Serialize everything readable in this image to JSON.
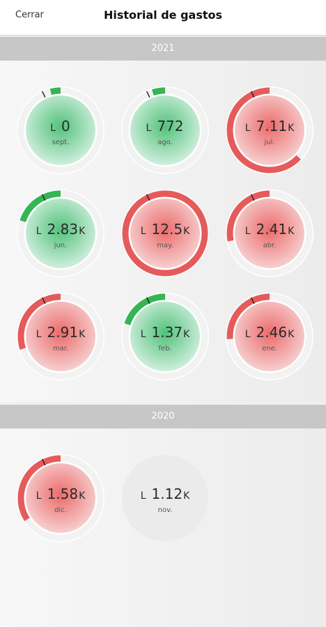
{
  "header": {
    "close_label": "Cerrar",
    "title": "Historial de gastos"
  },
  "colors": {
    "over_budget": "#e55b5b",
    "under_budget": "#35b554",
    "bar": "#c7c7c7"
  },
  "sections": [
    {
      "year": "2021",
      "months": [
        {
          "currency": "L",
          "amount": "0",
          "suffix": "",
          "month": "sept.",
          "status": "under",
          "progress": 0.04,
          "budget_marker": 0.93
        },
        {
          "currency": "L",
          "amount": "772",
          "suffix": "",
          "month": "ago.",
          "status": "under",
          "progress": 0.05,
          "budget_marker": 0.93
        },
        {
          "currency": "L",
          "amount": "7.11",
          "suffix": "K",
          "month": "jul.",
          "status": "over",
          "progress": 0.63,
          "budget_marker": 0.93
        },
        {
          "currency": "L",
          "amount": "2.83",
          "suffix": "K",
          "month": "jun.",
          "status": "under",
          "progress": 0.2,
          "budget_marker": 0.93
        },
        {
          "currency": "L",
          "amount": "12.5",
          "suffix": "K",
          "month": "may.",
          "status": "over",
          "progress": 1.0,
          "budget_marker": 0.93
        },
        {
          "currency": "L",
          "amount": "2.41",
          "suffix": "K",
          "month": "abr.",
          "status": "over",
          "progress": 0.28,
          "budget_marker": 0.93
        },
        {
          "currency": "L",
          "amount": "2.91",
          "suffix": "K",
          "month": "mar.",
          "status": "over",
          "progress": 0.3,
          "budget_marker": 0.93
        },
        {
          "currency": "L",
          "amount": "1.37",
          "suffix": "K",
          "month": "feb.",
          "status": "under",
          "progress": 0.2,
          "budget_marker": 0.93
        },
        {
          "currency": "L",
          "amount": "2.46",
          "suffix": "K",
          "month": "ene.",
          "status": "over",
          "progress": 0.26,
          "budget_marker": 0.93
        }
      ]
    },
    {
      "year": "2020",
      "months": [
        {
          "currency": "L",
          "amount": "1.58",
          "suffix": "K",
          "month": "dic.",
          "status": "over",
          "progress": 0.34,
          "budget_marker": 0.93
        },
        {
          "currency": "L",
          "amount": "1.12",
          "suffix": "K",
          "month": "nov.",
          "status": "none",
          "progress": 0,
          "budget_marker": null
        }
      ]
    }
  ]
}
